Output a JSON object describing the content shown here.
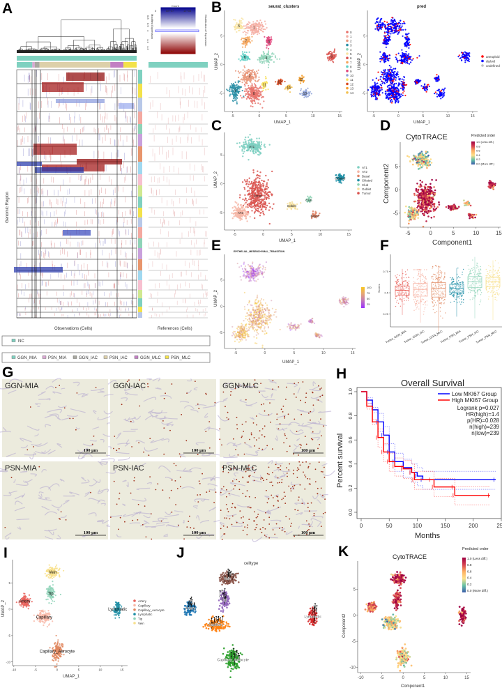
{
  "letters": {
    "a": "A",
    "b": "B",
    "c": "C",
    "d": "D",
    "e": "E",
    "f": "F",
    "g": "G",
    "h": "H",
    "i": "I",
    "j": "J",
    "k": "K"
  },
  "panel_a": {
    "count_label": "Count",
    "count_ticks": [
      "0",
      "5e+07",
      "1e+08"
    ],
    "colorbar_ticks": [
      "0.8",
      "0.9",
      "1",
      "1.1",
      "1.2"
    ],
    "y_label": "Modified Expression",
    "dist_label": "Distribution of Expression",
    "genomic_label": "Genomic Region",
    "obs_label": "Observations (Cells)",
    "ref_label": "References (Cells)",
    "legend_nc": {
      "label": "NC",
      "color": "#7fd1c0"
    },
    "legend_groups": [
      {
        "label": "GGN_MIA",
        "color": "#7fd1c0"
      },
      {
        "label": "PSN_MIA",
        "color": "#d9a8d2"
      },
      {
        "label": "GGN_IAC",
        "color": "#a8a8a0"
      },
      {
        "label": "PSN_IAC",
        "color": "#ddd0aa"
      },
      {
        "label": "GGN_MLC",
        "color": "#c27fc3"
      },
      {
        "label": "PSN_MLC",
        "color": "#f3e24a"
      }
    ]
  },
  "panel_b": {
    "title_left": "seurat_clusters",
    "title_right": "pred",
    "xlabel": "UMAP_1",
    "ylabel": "UMAP_2",
    "xticks": [
      -5,
      0,
      5,
      10,
      15
    ],
    "yticks": [
      -5,
      0,
      5
    ],
    "clusters": [
      {
        "label": "0",
        "color": "#E8736C",
        "center": [
          -1,
          -5
        ],
        "spread": [
          1.3,
          1.4
        ],
        "n": 220
      },
      {
        "label": "1",
        "color": "#F4AFA5",
        "center": [
          -1,
          6.5
        ],
        "spread": [
          1.6,
          1.1
        ],
        "n": 160
      },
      {
        "label": "2",
        "color": "#E9967A",
        "center": [
          -1.8,
          -2
        ],
        "spread": [
          1.5,
          1.1
        ],
        "n": 160
      },
      {
        "label": "3",
        "color": "#2A8FA6",
        "center": [
          -4.5,
          -4.5
        ],
        "spread": [
          0.9,
          1.2
        ],
        "n": 130
      },
      {
        "label": "4",
        "color": "#8FD3B8",
        "center": [
          1.3,
          1.2
        ],
        "spread": [
          1.2,
          0.8
        ],
        "n": 110
      },
      {
        "label": "5",
        "color": "#F8E3A0",
        "center": [
          -3.8,
          6.8
        ],
        "spread": [
          0.8,
          0.9
        ],
        "n": 60
      },
      {
        "label": "6",
        "color": "#D9534F",
        "center": [
          13.5,
          1.5
        ],
        "spread": [
          0.7,
          0.7
        ],
        "n": 70
      },
      {
        "label": "7",
        "color": "#F5A55C",
        "center": [
          -2.5,
          4.2
        ],
        "spread": [
          0.7,
          0.8
        ],
        "n": 60
      },
      {
        "label": "8",
        "color": "#5FD0C5",
        "center": [
          -2.7,
          1.3
        ],
        "spread": [
          0.8,
          0.6
        ],
        "n": 60
      },
      {
        "label": "9",
        "color": "#E0457B",
        "center": [
          1.8,
          4
        ],
        "spread": [
          0.5,
          0.9
        ],
        "n": 50
      },
      {
        "label": "10",
        "color": "#8FA3D8",
        "center": [
          8.5,
          -5
        ],
        "spread": [
          0.8,
          0.6
        ],
        "n": 50
      },
      {
        "label": "11",
        "color": "#F8E060",
        "center": [
          1,
          -3.5
        ],
        "spread": [
          0.4,
          0.9
        ],
        "n": 40
      },
      {
        "label": "12",
        "color": "#D8491E",
        "center": [
          3.8,
          -3
        ],
        "spread": [
          0.5,
          0.4
        ],
        "n": 40
      },
      {
        "label": "13",
        "color": "#F5A030",
        "center": [
          7.8,
          -2.6
        ],
        "spread": [
          0.4,
          0.5
        ],
        "n": 30
      },
      {
        "label": "14",
        "color": "#F2C050",
        "center": [
          5.5,
          -4
        ],
        "spread": [
          0.6,
          0.4
        ],
        "n": 30
      }
    ],
    "pred_legend": [
      {
        "label": "aneuploid",
        "color": "#FF0000"
      },
      {
        "label": "diploid",
        "color": "#0000FF"
      },
      {
        "label": "undefined",
        "color": "#BEBEBE"
      }
    ],
    "aneuploid_fraction": 0.15
  },
  "panel_c": {
    "xlabel": "UMAP_1",
    "ylabel": "UMAP_2",
    "xticks": [
      -5,
      0,
      5,
      10,
      15
    ],
    "yticks": [
      -5,
      0,
      5
    ],
    "clusters": [
      {
        "label": "AT1",
        "color": "#7DCFC1",
        "center": [
          -2,
          6.5
        ],
        "spread": [
          1.6,
          1.2
        ],
        "n": 190,
        "cyto": 0.35,
        "emt": 0.3
      },
      {
        "label": "AT2",
        "color": "#F6B6A6",
        "center": [
          -4,
          -5
        ],
        "spread": [
          1.0,
          1.1
        ],
        "n": 150,
        "cyto": 0.4,
        "emt": 0.8
      },
      {
        "label": "Basal",
        "color": "#E0876A",
        "center": [
          9,
          -5.5
        ],
        "spread": [
          0.5,
          0.4
        ],
        "n": 40,
        "cyto": 0.9,
        "emt": 0.6
      },
      {
        "label": "Ciliated",
        "color": "#1F8FA6",
        "center": [
          13.5,
          1
        ],
        "spread": [
          0.6,
          0.6
        ],
        "n": 70,
        "cyto": 0.85,
        "emt": 0.5
      },
      {
        "label": "Club",
        "color": "#8ED3B5",
        "center": [
          8,
          -2.8
        ],
        "spread": [
          0.4,
          0.4
        ],
        "n": 25,
        "cyto": 0.5,
        "emt": 0.4
      },
      {
        "label": "Goblet",
        "color": "#F6E0A0",
        "center": [
          5,
          -3.8
        ],
        "spread": [
          1.0,
          0.5
        ],
        "n": 50,
        "cyto": 0.85,
        "emt": 0.5
      },
      {
        "label": "Tumor",
        "color": "#D9534F",
        "center": [
          -1,
          -2
        ],
        "spread": [
          1.8,
          2.6
        ],
        "n": 380,
        "cyto": 0.9,
        "emt": 0.75
      }
    ]
  },
  "panel_d": {
    "title": "CytoTRACE",
    "xlabel": "Component1",
    "ylabel": "Component2",
    "xticks": [
      -5,
      0,
      5,
      10,
      15
    ],
    "yticks": [
      -5,
      0,
      5
    ],
    "legend_title": "Predicted order",
    "legend_ticks": [
      "1.0 (Less diff.)",
      "0.8",
      "0.6",
      "0.4",
      "0.2",
      "0.0 (More diff.)"
    ]
  },
  "panel_e": {
    "title": "EPITHELIAL_MESENCHYMAL_TRANSITION",
    "xlabel": "UMAP_1",
    "ylabel": "UMAP_2",
    "xticks": [
      -5,
      0,
      5,
      10,
      15
    ],
    "yticks": [
      -5,
      0,
      5
    ],
    "legend_ticks": [
      "100",
      "75",
      "50",
      "25"
    ]
  },
  "panel_f": {
    "ylabel": "Scores",
    "yticks": [
      0.25,
      0.5,
      0.75
    ],
    "ylim": [
      0.1,
      0.95
    ],
    "groups": [
      {
        "label": "Tumor_GGN_MIA",
        "color": "#E8605A",
        "median": 0.53,
        "q1": 0.47,
        "q3": 0.58,
        "min": 0.24,
        "max": 0.78
      },
      {
        "label": "Tumor_GGN_IAC",
        "color": "#F6B0A0",
        "median": 0.54,
        "q1": 0.46,
        "q3": 0.61,
        "min": 0.15,
        "max": 0.77
      },
      {
        "label": "Tumor_GGN_MLC",
        "color": "#E08860",
        "median": 0.55,
        "q1": 0.45,
        "q3": 0.62,
        "min": 0.05,
        "max": 0.82
      },
      {
        "label": "Tumor_PSN_MIA",
        "color": "#1F8FA6",
        "median": 0.55,
        "q1": 0.5,
        "q3": 0.6,
        "min": 0.22,
        "max": 0.79
      },
      {
        "label": "Tumor_PSN_IAC",
        "color": "#8FD3B8",
        "median": 0.63,
        "q1": 0.56,
        "q3": 0.69,
        "min": 0.2,
        "max": 0.92
      },
      {
        "label": "Tumor_PSN_MLC",
        "color": "#F8E08C",
        "median": 0.63,
        "q1": 0.57,
        "q3": 0.68,
        "min": 0.18,
        "max": 0.88
      }
    ]
  },
  "panel_g": {
    "images": [
      {
        "label": "GGN-MIA",
        "scale": "100 μm",
        "positivity": 0.05
      },
      {
        "label": "GGN-IAC",
        "scale": "100 μm",
        "positivity": 0.15
      },
      {
        "label": "GGN-MLC",
        "scale": "100 μm",
        "positivity": 0.45
      },
      {
        "label": "PSN-MIA",
        "scale": "100 μm",
        "positivity": 0.03
      },
      {
        "label": "PSN-IAC",
        "scale": "100 μm",
        "positivity": 0.2
      },
      {
        "label": "PSN-MLC",
        "scale": "100 μm",
        "positivity": 0.8
      }
    ]
  },
  "chart_data": {
    "type": "line",
    "title": "Overall Survival",
    "xlabel": "Months",
    "ylabel": "Percent survival",
    "xlim": [
      0,
      250
    ],
    "ylim": [
      0,
      1
    ],
    "xticks": [
      0,
      50,
      100,
      150,
      200,
      250
    ],
    "yticks": [
      0.0,
      0.2,
      0.4,
      0.6,
      0.8,
      1.0
    ],
    "legend": "top-right",
    "series": [
      {
        "name": "Low MKI67 Group",
        "color": "#0000FF",
        "x": [
          0,
          10,
          20,
          30,
          40,
          50,
          60,
          75,
          90,
          100,
          110,
          240
        ],
        "y": [
          1,
          0.93,
          0.85,
          0.75,
          0.64,
          0.5,
          0.42,
          0.37,
          0.33,
          0.3,
          0.27,
          0.27
        ]
      },
      {
        "name": "High MKI67 Group",
        "color": "#FF0000",
        "x": [
          0,
          10,
          20,
          30,
          40,
          50,
          60,
          75,
          90,
          95,
          125,
          130,
          165,
          167,
          230
        ],
        "y": [
          1,
          0.88,
          0.75,
          0.62,
          0.5,
          0.42,
          0.38,
          0.36,
          0.33,
          0.27,
          0.27,
          0.21,
          0.21,
          0.14,
          0.14
        ]
      }
    ],
    "annotations": [
      "Logrank p=0.027",
      "HR(high)=1.4",
      "p(HR)=0.028",
      "n(high)=239",
      "n(low)=239"
    ]
  },
  "panel_i": {
    "xlabel": "UMAP_1",
    "ylabel": "UMAP_2",
    "xticks": [
      -10,
      -5,
      0,
      5,
      10,
      15
    ],
    "yticks": [
      -10,
      -5,
      0,
      5
    ],
    "clusters": [
      {
        "label": "Artery",
        "color": "#E8605A",
        "j_color": "#1F77B4",
        "center": [
          -7.5,
          1.5
        ],
        "spread": [
          0.9,
          0.9
        ],
        "n": 110,
        "cyto": 0.7
      },
      {
        "label": "Capillary",
        "color": "#F8B8A8",
        "j_color": "#FF7F0E",
        "center": [
          -3,
          -1.5
        ],
        "spread": [
          1.3,
          0.9
        ],
        "n": 160,
        "cyto": 0.4
      },
      {
        "label": "Capillary_Aerocyte",
        "color": "#E08860",
        "j_color": "#2CA02C",
        "center": [
          0,
          -8
        ],
        "spread": [
          1.1,
          1.5
        ],
        "n": 160,
        "cyto": 0.45
      },
      {
        "label": "Lymphatic",
        "color": "#1F8FA6",
        "j_color": "#D62728",
        "center": [
          14,
          0
        ],
        "spread": [
          0.6,
          1.2
        ],
        "n": 90,
        "cyto": 0.95
      },
      {
        "label": "Tip",
        "color": "#8FD3B8",
        "j_color": "#9467BD",
        "center": [
          -1.5,
          3
        ],
        "spread": [
          0.7,
          1.3
        ],
        "n": 100,
        "cyto": 0.85
      },
      {
        "label": "Vein",
        "color": "#F8E08C",
        "j_color": "#8C564B",
        "center": [
          -1,
          7
        ],
        "spread": [
          1.2,
          0.9
        ],
        "n": 130,
        "cyto": 0.9
      }
    ]
  },
  "panel_j": {
    "title": "celltype"
  },
  "panel_k": {
    "title": "CytoTRACE",
    "xlabel": "Component1",
    "ylabel": "Component2",
    "xticks": [
      -10,
      -5,
      0,
      5,
      10,
      15
    ],
    "yticks": [
      -10,
      -5,
      0,
      5
    ],
    "legend_title": "Predicted order",
    "legend_ticks": [
      "1.0 (Less diff.)",
      "0.8",
      "0.6",
      "0.4",
      "0.2",
      "0.0 (More diff.)"
    ]
  }
}
